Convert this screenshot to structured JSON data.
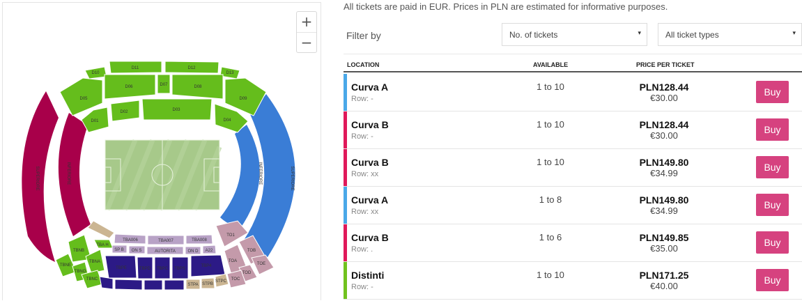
{
  "map": {
    "zoom_in": "+",
    "zoom_out": "−",
    "colors": {
      "green": "#65bd1c",
      "crimson": "#a8004a",
      "blue": "#3a7dd6",
      "pink_grey": "#c49aaa",
      "lavender": "#b8a2c6",
      "navy": "#2c1a86",
      "tan": "#cbb592"
    },
    "sections": {
      "d10": "D10",
      "d11": "D11",
      "d12": "D12",
      "d13": "D13",
      "d05": "D05",
      "d06": "D06",
      "d07": "D07",
      "d08": "D08",
      "d09": "D09",
      "d01": "D01",
      "d02": "D02",
      "d03": "D03",
      "d04": "D04",
      "sup_left": "SUPERIORE",
      "inf_left": "INFERIORE",
      "sup_right": "SUPERIORE",
      "inf_right": "INFERIORE",
      "tba006": "TBA006",
      "tba007": "TBA007",
      "tba008": "TBA008",
      "tbah": "TBA H",
      "spb": "SP B",
      "ons": "ON S",
      "autorita": "AUTORITA",
      "ond": "ON D",
      "a22": "A22",
      "tbnb": "TBNB",
      "tbna": "TBNA",
      "tbne": "TBNE",
      "tbno": "TBNO",
      "tbnc": "TBNC",
      "tbpe": "TBPE",
      "tbpd": "TBPD",
      "tbpc": "TBPC",
      "tbps": "TBPS",
      "tbp4": "TBP4",
      "to1": "TO1",
      "tob": "TOB",
      "toa": "TOA",
      "toe": "TOE",
      "tod": "TOD",
      "toc": "TOC",
      "stpa": "STPA",
      "stpb": "STPB",
      "stpc": "STPC"
    }
  },
  "notice": "All tickets are paid in EUR. Prices in PLN are estimated for informative purposes.",
  "filter": {
    "label": "Filter by",
    "tickets_select": "No. of tickets",
    "types_select": "All ticket types",
    "arrow": "▾"
  },
  "table": {
    "col_location": "LOCATION",
    "col_available": "AVAILABLE",
    "col_price": "PRICE PER TICKET",
    "rows": [
      {
        "location": "Curva A",
        "row": "Row: -",
        "available": "1 to 10",
        "pln": "PLN128.44",
        "eur": "€30.00",
        "buy": "Buy",
        "color": "#4aa8e8"
      },
      {
        "location": "Curva B",
        "row": "Row: -",
        "available": "1 to 10",
        "pln": "PLN128.44",
        "eur": "€30.00",
        "buy": "Buy",
        "color": "#e0195a"
      },
      {
        "location": "Curva B",
        "row": "Row: xx",
        "available": "1 to 10",
        "pln": "PLN149.80",
        "eur": "€34.99",
        "buy": "Buy",
        "color": "#e0195a"
      },
      {
        "location": "Curva A",
        "row": "Row: xx",
        "available": "1 to 8",
        "pln": "PLN149.80",
        "eur": "€34.99",
        "buy": "Buy",
        "color": "#4aa8e8"
      },
      {
        "location": "Curva B",
        "row": "Row: .",
        "available": "1 to 6",
        "pln": "PLN149.85",
        "eur": "€35.00",
        "buy": "Buy",
        "color": "#e0195a"
      },
      {
        "location": "Distinti",
        "row": "Row: -",
        "available": "1 to 10",
        "pln": "PLN171.25",
        "eur": "€40.00",
        "buy": "Buy",
        "color": "#71c21f"
      }
    ]
  }
}
